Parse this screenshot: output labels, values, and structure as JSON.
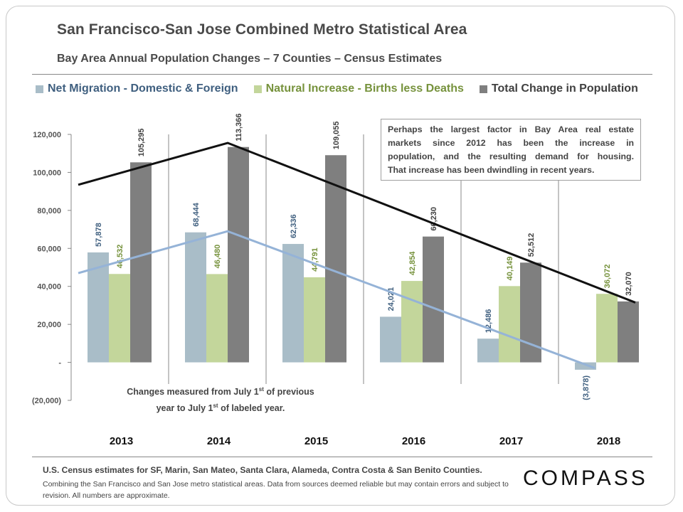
{
  "header": {
    "title": "San Francisco-San Jose Combined Metro Statistical Area",
    "subtitle": "Bay Area Annual Population Changes – 7 Counties – Census Estimates"
  },
  "colors": {
    "net_migration": "#a9bdc8",
    "net_migration_text": "#3f5f7f",
    "natural_increase": "#c3d69b",
    "natural_increase_text": "#76923c",
    "total_change": "#7f7f7f",
    "total_change_text": "#404040",
    "trend_total": "#111111",
    "trend_migration": "#95b3d7"
  },
  "note": {
    "lines": [
      "Perhaps the largest factor in Bay Area real estate",
      "markets since 2012 has been the increase in",
      "population, and the resulting demand for housing.",
      "That increase has been dwindling in recent years."
    ]
  },
  "measure_note": {
    "line1_a": "Changes measured from July 1",
    "line1_sup": "st",
    "line1_b": " of previous",
    "line2_a": "year to July 1",
    "line2_sup": "st",
    "line2_b": " of labeled year."
  },
  "footer": {
    "line1": "U.S. Census estimates for SF, Marin, San Mateo, Santa Clara, Alameda, Contra Costa & San Benito Counties.",
    "line2": "Combining the San Francisco and San Jose metro statistical areas. Data from sources deemed reliable but may contain errors and subject to revision. All numbers are approximate.",
    "logo": "COMPASS"
  },
  "chart_data": {
    "type": "bar",
    "title": "Bay Area Annual Population Changes – 7 Counties – Census Estimates",
    "xlabel": "",
    "ylabel": "",
    "ylim": [
      -20000,
      120000
    ],
    "yticks": [
      120000,
      100000,
      80000,
      60000,
      40000,
      20000,
      0,
      -20000
    ],
    "ytick_labels": [
      "120,000",
      "100,000",
      "80,000",
      "60,000",
      "40,000",
      "20,000",
      "-",
      "(20,000)"
    ],
    "categories": [
      "2013",
      "2014",
      "2015",
      "2016",
      "2017",
      "2018"
    ],
    "legend_position": "top",
    "grid": false,
    "series": [
      {
        "name": "Net Migration - Domestic & Foreign",
        "values": [
          57878,
          68444,
          62336,
          24021,
          12486,
          -3878
        ],
        "labels": [
          "57,878",
          "68,444",
          "62,336",
          "24,021",
          "12,486",
          "(3,878)"
        ]
      },
      {
        "name": "Natural Increase - Births less Deaths",
        "values": [
          46532,
          46480,
          44791,
          42854,
          40149,
          36072
        ],
        "labels": [
          "46,532",
          "46,480",
          "44,791",
          "42,854",
          "40,149",
          "36,072"
        ]
      },
      {
        "name": "Total Change in Population",
        "values": [
          105295,
          113366,
          109055,
          66230,
          52512,
          32070
        ],
        "labels": [
          "105,295",
          "113,366",
          "109,055",
          "66,230",
          "52,512",
          "32,070"
        ]
      }
    ],
    "trend_lines": [
      {
        "name": "Total change trend",
        "points": [
          {
            "x": "2013-start",
            "y": 93500
          },
          {
            "x": "2014",
            "y": 115500
          },
          {
            "x": "2018-end",
            "y": 31500
          }
        ]
      },
      {
        "name": "Net migration trend",
        "points": [
          {
            "x": "2013-start",
            "y": 47000
          },
          {
            "x": "2014",
            "y": 69000
          },
          {
            "x": "2018-mid",
            "y": -3000
          }
        ]
      }
    ]
  }
}
